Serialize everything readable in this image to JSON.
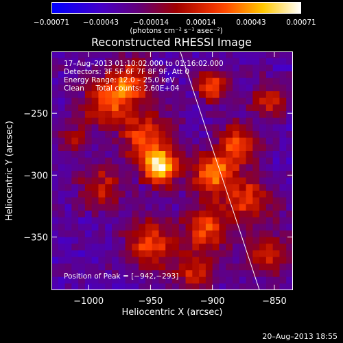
{
  "chart_data": {
    "type": "heatmap",
    "title": "Reconstructed RHESSI Image",
    "xlabel": "Heliocentric X (arcsec)",
    "ylabel": "Heliocentric Y (arcsec)",
    "xlim": [
      -1030,
      -835
    ],
    "ylim": [
      -393,
      -200
    ],
    "x_ticks": [
      -1000,
      -950,
      -900,
      -850
    ],
    "x_tick_labels": [
      "−1000",
      "−950",
      "−900",
      "−850"
    ],
    "y_ticks": [
      -250,
      -300,
      -350
    ],
    "y_tick_labels": [
      "−250",
      "−300",
      "−350"
    ],
    "colorbar": {
      "range": [
        -0.00071,
        0.00071
      ],
      "ticks": [
        -0.00071,
        -0.00043,
        -0.00014,
        0.00014,
        0.00043,
        0.00071
      ],
      "tick_labels": [
        "−0.00071",
        "−0.00043",
        "−0.00014",
        "0.00014",
        "0.00043",
        "0.00071"
      ],
      "unit": "(photons cm⁻² s⁻¹ asec⁻²)"
    },
    "info_lines": [
      "17–Aug–2013 01:10:02.000 to 01:16:02.000",
      "Detectors: 3F 5F 6F 7F 8F 9F, Att 0",
      "Energy Range: 12.0 – 25.0 keV",
      "Clean     Total counts: 2.60E+04"
    ],
    "peak_label": "Position of Peak = [−942,−293]",
    "peak_position": [
      -942,
      -293
    ],
    "emission_sources": [
      {
        "x": -942,
        "y": -293,
        "amplitude": 1.25,
        "sigma": 10
      },
      {
        "x": -955,
        "y": -268,
        "amplitude": 0.75,
        "sigma": 14
      },
      {
        "x": -985,
        "y": -240,
        "amplitude": 0.8,
        "sigma": 13
      },
      {
        "x": -965,
        "y": -225,
        "amplitude": 0.7,
        "sigma": 12
      },
      {
        "x": -900,
        "y": -300,
        "amplitude": 0.95,
        "sigma": 12
      },
      {
        "x": -880,
        "y": -275,
        "amplitude": 0.7,
        "sigma": 12
      },
      {
        "x": -905,
        "y": -345,
        "amplitude": 0.75,
        "sigma": 13
      },
      {
        "x": -870,
        "y": -320,
        "amplitude": 0.7,
        "sigma": 13
      },
      {
        "x": -950,
        "y": -355,
        "amplitude": 0.75,
        "sigma": 14
      },
      {
        "x": -990,
        "y": -310,
        "amplitude": 0.55,
        "sigma": 12
      },
      {
        "x": -900,
        "y": -228,
        "amplitude": 0.75,
        "sigma": 9
      },
      {
        "x": -855,
        "y": -240,
        "amplitude": 0.6,
        "sigma": 10
      },
      {
        "x": -855,
        "y": -365,
        "amplitude": 0.6,
        "sigma": 12
      },
      {
        "x": -915,
        "y": -380,
        "amplitude": 0.55,
        "sigma": 12
      },
      {
        "x": -1010,
        "y": -270,
        "amplitude": 0.4,
        "sigma": 10
      }
    ],
    "limb_line": {
      "x": [
        -926,
        -862
      ],
      "y": [
        -200,
        -393
      ]
    },
    "grid": false
  },
  "timestamp": "20–Aug–2013 18:55"
}
